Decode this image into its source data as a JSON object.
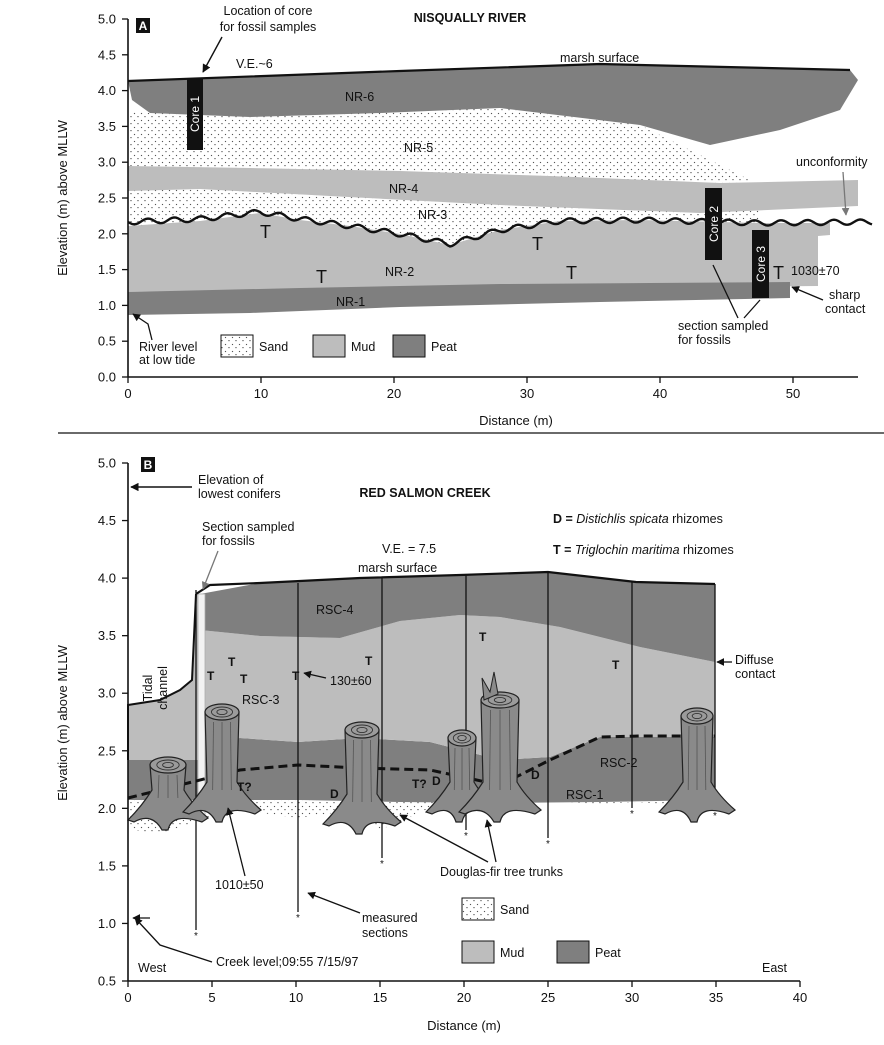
{
  "panel_a": {
    "letter": "A",
    "title": "NISQUALLY RIVER",
    "ylabel": "Elevation (m) above MLLW",
    "xlabel": "Distance (m)",
    "y_ticks": [
      "0.0",
      "0.5",
      "1.0",
      "1.5",
      "2.0",
      "2.5",
      "3.0",
      "3.5",
      "4.0",
      "4.5",
      "5.0"
    ],
    "x_ticks": [
      "0",
      "10",
      "20",
      "30",
      "40",
      "50"
    ],
    "ve": "V.E.~6",
    "marsh_surface": "marsh surface",
    "core_location": [
      "Location of core",
      "for fossil samples"
    ],
    "unconformity": "unconformity",
    "units": [
      "NR-6",
      "NR-5",
      "NR-4",
      "NR-3",
      "NR-2",
      "NR-1"
    ],
    "cores": [
      "Core 1",
      "Core 2",
      "Core 3"
    ],
    "triglochin": "T",
    "age": "1030±70",
    "sharp_contact": [
      "sharp",
      "contact"
    ],
    "section_sampled": [
      "section sampled",
      "for fossils"
    ],
    "river_level": [
      "River level",
      "at low tide"
    ],
    "legend": [
      "Sand",
      "Mud",
      "Peat"
    ]
  },
  "panel_b": {
    "letter": "B",
    "title": "RED SALMON CREEK",
    "ylabel": "Elevation (m) above MLLW",
    "xlabel": "Distance (m)",
    "y_ticks": [
      "0.5",
      "1.0",
      "1.5",
      "2.0",
      "2.5",
      "3.0",
      "3.5",
      "4.0",
      "4.5",
      "5.0"
    ],
    "x_ticks": [
      "0",
      "5",
      "10",
      "15",
      "20",
      "25",
      "30",
      "35",
      "40"
    ],
    "ve": "V.E. = 7.5",
    "conifers": [
      "Elevation of",
      "lowest conifers"
    ],
    "section_sampled": [
      "Section sampled",
      "for fossils"
    ],
    "marsh_surface": "marsh surface",
    "d_def_prefix": "D = ",
    "d_def_name": "Distichlis spicata",
    "d_def_suffix": " rhizomes",
    "t_def_prefix": "T = ",
    "t_def_name": "Triglochin maritima",
    "t_def_suffix": " rhizomes",
    "units": [
      "RSC-4",
      "RSC-3",
      "RSC-2",
      "RSC-1"
    ],
    "tidal_channel": [
      "Tidal",
      "channel"
    ],
    "diffuse_contact": [
      "Diffuse",
      "contact"
    ],
    "age_130": "130±60",
    "age_1010": "1010±50",
    "t_label": "T",
    "t_q_label": "T?",
    "d_label": "D",
    "trunks": "Douglas-fir tree trunks",
    "measured": [
      "measured",
      "sections"
    ],
    "creek_level": "Creek level;09:55 7/15/97",
    "west": "West",
    "east": "East",
    "legend": [
      "Sand",
      "Mud",
      "Peat"
    ]
  },
  "colors": {
    "peat": "#7f7f7f",
    "mud": "#bdbdbd",
    "sand_dot": "#555555",
    "line": "#111111"
  }
}
